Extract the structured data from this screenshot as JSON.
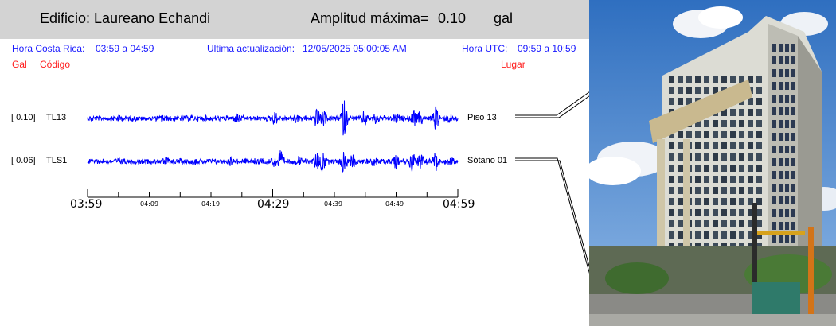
{
  "header": {
    "building": "Edificio: Laureano Echandi",
    "amp_label": "Amplitud máxima=",
    "amp_value": "0.10",
    "amp_unit": "gal"
  },
  "info": {
    "hora_cr_label": "Hora Costa Rica:",
    "hora_cr_range": "03:59 a 04:59",
    "update_label": "Ultima actualización:",
    "update_value": "12/05/2025 05:00:05 AM",
    "hora_utc_label": "Hora UTC:",
    "hora_utc_range": "09:59 a 10:59"
  },
  "columns": {
    "gal": "Gal",
    "codigo": "Código",
    "lugar": "Lugar"
  },
  "channels": [
    {
      "amp": "[   0.10]",
      "code": "TL13",
      "place": "Piso 13"
    },
    {
      "amp": "[   0.06]",
      "code": "TLS1",
      "place": "Sótano 01"
    }
  ],
  "axis": {
    "major": [
      "03:59",
      "04:29",
      "04:59"
    ],
    "minor": [
      "04:09",
      "04:19",
      "04:39",
      "04:49"
    ]
  },
  "colors": {
    "trace": "#0000ff",
    "header_bg": "#d3d3d3",
    "info_text": "#1a1aff",
    "column_text": "#ff1a1a"
  }
}
